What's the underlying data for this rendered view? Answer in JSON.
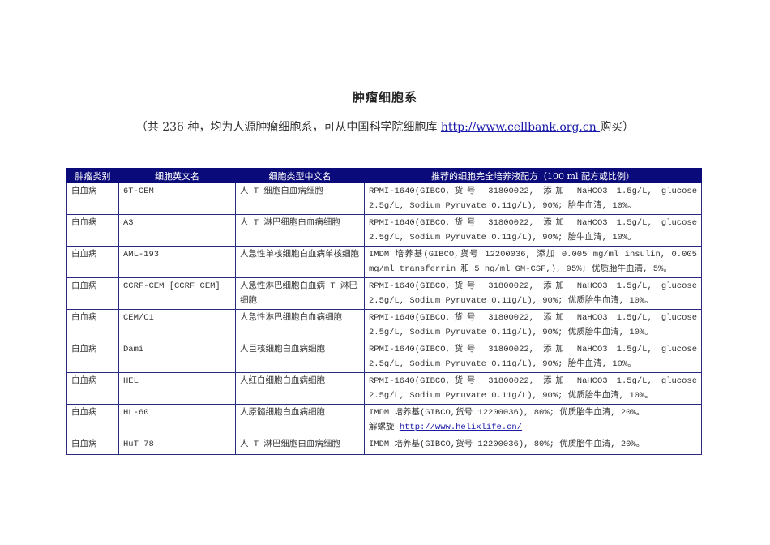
{
  "title": "肿瘤细胞系",
  "subtitle": {
    "prefix": "（共 236 种，均为人源肿瘤细胞系，可从中国科学院细胞库 ",
    "link": "http://www.cellbank.org.cn ",
    "suffix": "购买）"
  },
  "table": {
    "headers": [
      "肿瘤类别",
      "细胞英文名",
      "细胞类型中文名",
      "推荐的细胞完全培养液配方（100 ml 配方或比例）"
    ],
    "rows": [
      {
        "category": "白血病",
        "name_en": "6T-CEM",
        "name_cn": "人 T 细胞白血病细胞",
        "medium": "RPMI-1640(GIBCO,货号 31800022, 添加 NaHCO3 1.5g/L, glucose 2.5g/L, Sodium Pyruvate 0.11g/L), 90%; 胎牛血清, 10%。"
      },
      {
        "category": "白血病",
        "name_en": "A3",
        "name_cn": "人 T 淋巴细胞白血病细胞",
        "medium": "RPMI-1640(GIBCO,货号 31800022, 添加 NaHCO3 1.5g/L, glucose 2.5g/L, Sodium Pyruvate 0.11g/L), 90%; 胎牛血清, 10%。"
      },
      {
        "category": "白血病",
        "name_en": "AML-193",
        "name_cn": "人急性单核细胞白血病单核细胞",
        "medium": "IMDM 培养基(GIBCO,货号 12200036, 添加 0.005 mg/ml insulin, 0.005 mg/ml transferrin 和 5 ng/ml GM-CSF,), 95%; 优质胎牛血清, 5%。"
      },
      {
        "category": "白血病",
        "name_en": "CCRF-CEM [CCRF CEM]",
        "name_cn": "人急性淋巴细胞白血病 T 淋巴细胞",
        "medium": "RPMI-1640(GIBCO,货号 31800022, 添加 NaHCO3 1.5g/L, glucose 2.5g/L, Sodium Pyruvate 0.11g/L), 90%; 优质胎牛血清, 10%。"
      },
      {
        "category": "白血病",
        "name_en": "CEM/C1",
        "name_cn": "人急性淋巴细胞白血病细胞",
        "medium": "RPMI-1640(GIBCO,货号 31800022, 添加 NaHCO3 1.5g/L, glucose 2.5g/L, Sodium Pyruvate 0.11g/L), 90%; 优质胎牛血清, 10%。"
      },
      {
        "category": "白血病",
        "name_en": "Dami",
        "name_cn": "人巨核细胞白血病细胞",
        "medium": "RPMI-1640(GIBCO,货号 31800022, 添加 NaHCO3 1.5g/L, glucose 2.5g/L, Sodium Pyruvate 0.11g/L), 90%; 胎牛血清, 10%。"
      },
      {
        "category": "白血病",
        "name_en": "HEL",
        "name_cn": "人红白细胞白血病细胞",
        "medium": "RPMI-1640(GIBCO,货号 31800022, 添加 NaHCO3 1.5g/L, glucose 2.5g/L, Sodium Pyruvate 0.11g/L), 90%; 优质胎牛血清, 10%。"
      },
      {
        "category": "白血病",
        "name_en": "HL-60",
        "name_cn": "人原髓细胞白血病细胞",
        "medium": "IMDM 培养基(GIBCO,货号 12200036), 80%; 优质胎牛血清, 20%。",
        "note_prefix": "解螺旋 ",
        "note_link": "http://www.helixlife.cn/"
      },
      {
        "category": "白血病",
        "name_en": "HuT 78",
        "name_cn": "人 T 淋巴细胞白血病细胞",
        "medium": "IMDM 培养基(GIBCO,货号 12200036), 80%; 优质胎牛血清, 20%。"
      }
    ]
  }
}
